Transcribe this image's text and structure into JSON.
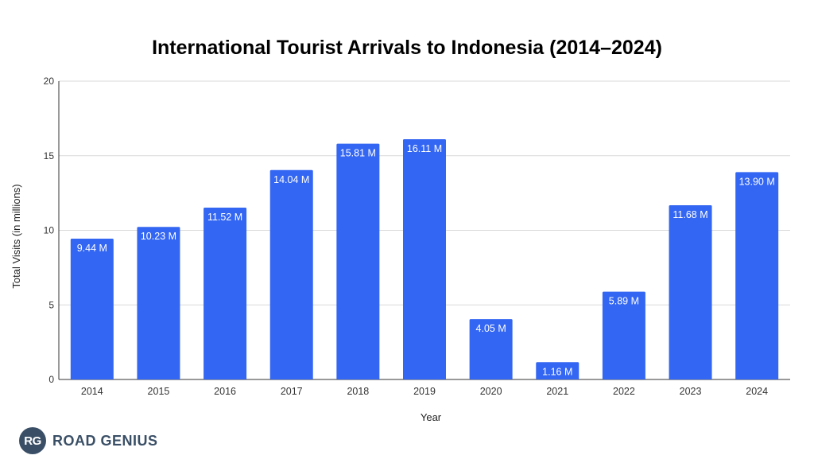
{
  "chart_data": {
    "type": "bar",
    "title": "International Tourist Arrivals to Indonesia (2014–2024)",
    "xlabel": "Year",
    "ylabel": "Total Visits (in millions)",
    "categories": [
      "2014",
      "2015",
      "2016",
      "2017",
      "2018",
      "2019",
      "2020",
      "2021",
      "2022",
      "2023",
      "2024"
    ],
    "values": [
      9.44,
      10.23,
      11.52,
      14.04,
      15.81,
      16.11,
      4.05,
      1.16,
      5.89,
      11.68,
      13.9
    ],
    "data_labels": [
      "9.44 M",
      "10.23 M",
      "11.52 M",
      "14.04 M",
      "15.81 M",
      "16.11 M",
      "4.05 M",
      "1.16 M",
      "5.89 M",
      "11.68 M",
      "13.90 M"
    ],
    "ylim": [
      0,
      20
    ],
    "yticks": [
      "0",
      "5",
      "10",
      "15",
      "20"
    ],
    "grid": true,
    "bar_color": "#3366f2"
  },
  "brand": {
    "mark": "RG",
    "name": "ROAD GENIUS",
    "color": "#3a4f66"
  }
}
